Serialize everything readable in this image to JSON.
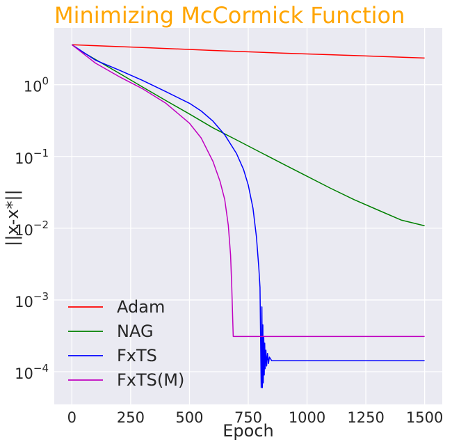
{
  "colors": {
    "title": "#FFA500",
    "plot_background": "#EAEAF2",
    "grid": "#FFFFFF",
    "text": "#262626"
  },
  "chart_data": {
    "type": "line",
    "title": "Minimizing McCormick Function",
    "xlabel": "Epoch",
    "ylabel": "||x-x*||",
    "xlim": [
      -75,
      1575
    ],
    "ylim": [
      3.5e-05,
      6.2
    ],
    "yscale": "log",
    "grid": true,
    "legend_position": "lower-left",
    "xticks": [
      0,
      250,
      500,
      750,
      1000,
      1250,
      1500
    ],
    "xtick_labels": [
      "0",
      "250",
      "500",
      "750",
      "1000",
      "1250",
      "1500"
    ],
    "yticks": [
      0.0001,
      0.001,
      0.01,
      0.1,
      1
    ],
    "ytick_labels": [
      {
        "base": "10",
        "exp": "−4"
      },
      {
        "base": "10",
        "exp": "−3"
      },
      {
        "base": "10",
        "exp": "−2"
      },
      {
        "base": "10",
        "exp": "−1"
      },
      {
        "base": "10",
        "exp": "0"
      }
    ],
    "series": [
      {
        "name": "Adam",
        "color": "#FF0000",
        "x": [
          0,
          300,
          600,
          900,
          1200,
          1500
        ],
        "y": [
          3.6,
          3.3,
          3.0,
          2.75,
          2.55,
          2.35
        ]
      },
      {
        "name": "NAG",
        "color": "#008000",
        "x": [
          0,
          50,
          100,
          200,
          300,
          400,
          500,
          600,
          700,
          800,
          900,
          1000,
          1100,
          1200,
          1300,
          1400,
          1500
        ],
        "y": [
          3.6,
          2.8,
          2.25,
          1.45,
          0.93,
          0.6,
          0.39,
          0.25,
          0.17,
          0.115,
          0.078,
          0.053,
          0.036,
          0.025,
          0.018,
          0.013,
          0.0108
        ]
      },
      {
        "name": "FxTS",
        "color": "#0000FF",
        "x": [
          0,
          100,
          200,
          300,
          400,
          500,
          550,
          600,
          650,
          700,
          730,
          750,
          770,
          785,
          795,
          800,
          805,
          808,
          810,
          812,
          814,
          816,
          818,
          820,
          822,
          825,
          828,
          832,
          836,
          840,
          850,
          900,
          1000,
          1100,
          1200,
          1300,
          1400,
          1500
        ],
        "y": [
          3.6,
          2.2,
          1.6,
          1.15,
          0.8,
          0.55,
          0.43,
          0.31,
          0.2,
          0.11,
          0.066,
          0.04,
          0.019,
          0.0075,
          0.0028,
          0.0015,
          6e-05,
          0.0008,
          6e-05,
          0.00045,
          7e-05,
          0.0003,
          9e-05,
          0.00025,
          0.00011,
          0.0002,
          0.00012,
          0.00018,
          0.00013,
          0.00016,
          0.000142,
          0.000142,
          0.000142,
          0.000142,
          0.000142,
          0.000142,
          0.000142,
          0.000142
        ]
      },
      {
        "name": "FxTS(M)",
        "color": "#C000C0",
        "x": [
          0,
          100,
          200,
          300,
          400,
          500,
          550,
          600,
          630,
          650,
          665,
          675,
          680,
          683,
          686,
          700,
          800,
          900,
          1000,
          1100,
          1200,
          1300,
          1400,
          1500
        ],
        "y": [
          3.6,
          2.0,
          1.3,
          0.88,
          0.55,
          0.29,
          0.18,
          0.085,
          0.045,
          0.025,
          0.011,
          0.0042,
          0.0015,
          0.0007,
          0.00031,
          0.00031,
          0.00031,
          0.00031,
          0.00031,
          0.00031,
          0.00031,
          0.00031,
          0.00031,
          0.00031
        ]
      }
    ]
  }
}
